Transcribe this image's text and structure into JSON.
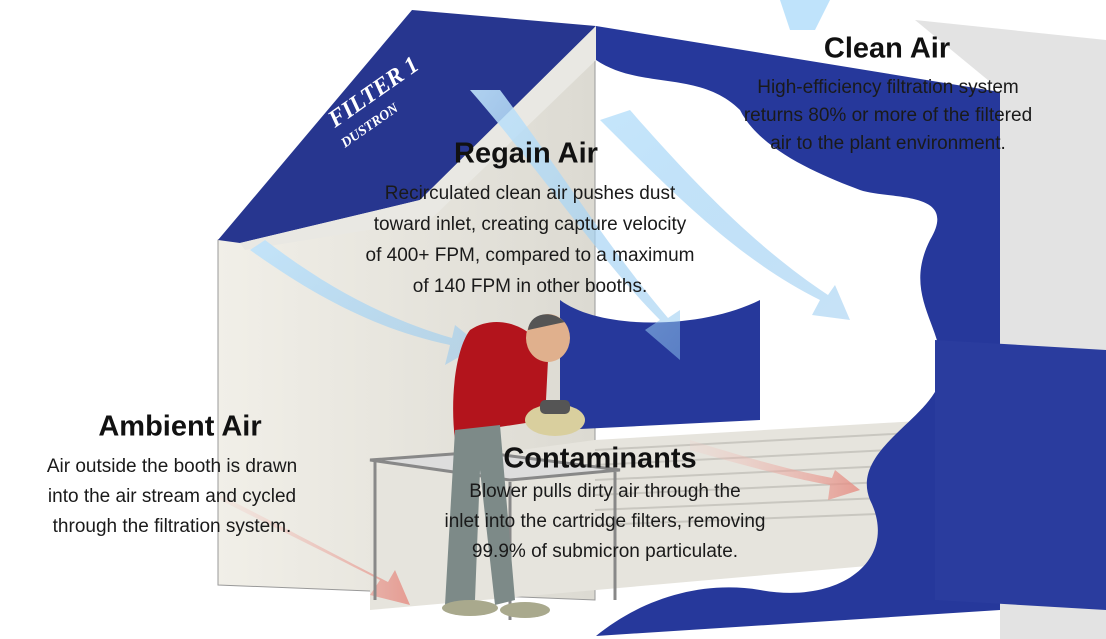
{
  "brand": {
    "name": "FILTER 1",
    "subname": "DUSTRON"
  },
  "sections": [
    {
      "title": "Clean Air",
      "lines": [
        "High-efficiency filtration system",
        "returns 80% or more of the filtered",
        "air to the plant environment."
      ]
    },
    {
      "title": "Regain Air",
      "lines": [
        "Recirculated clean air pushes dust",
        "toward inlet, creating capture velocity",
        "of 400+ FPM, compared to a maximum",
        "of 140 FPM in other booths."
      ]
    },
    {
      "title": "Ambient Air",
      "lines": [
        "Air outside the booth is drawn",
        "into the air stream and cycled",
        "through the filtration system."
      ]
    },
    {
      "title": "Contaminants",
      "lines": [
        "Blower pulls dirty air through the",
        "inlet into the cartridge filters, removing",
        "99.9% of submicron particulate."
      ]
    }
  ]
}
